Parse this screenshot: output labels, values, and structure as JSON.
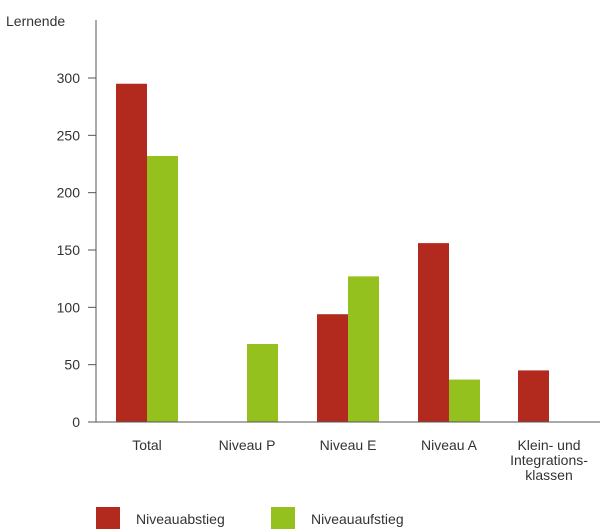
{
  "chart_data": {
    "type": "bar",
    "ylabel": "Lernende",
    "xlabel": "",
    "ylim": [
      0,
      300
    ],
    "yticks": [
      0,
      50,
      100,
      150,
      200,
      250,
      300
    ],
    "grid": false,
    "legend_position": "bottom-left",
    "categories": [
      [
        "Total"
      ],
      [
        "Niveau P"
      ],
      [
        "Niveau E"
      ],
      [
        "Niveau A"
      ],
      [
        "Klein- und",
        "Integrations-",
        "klassen"
      ]
    ],
    "series": [
      {
        "name": "Niveauabstieg",
        "color": "#b22a1d",
        "values": [
          295,
          0,
          94,
          156,
          45
        ]
      },
      {
        "name": "Niveauaufstieg",
        "color": "#95c11f",
        "values": [
          232,
          68,
          127,
          37,
          0
        ]
      }
    ]
  }
}
